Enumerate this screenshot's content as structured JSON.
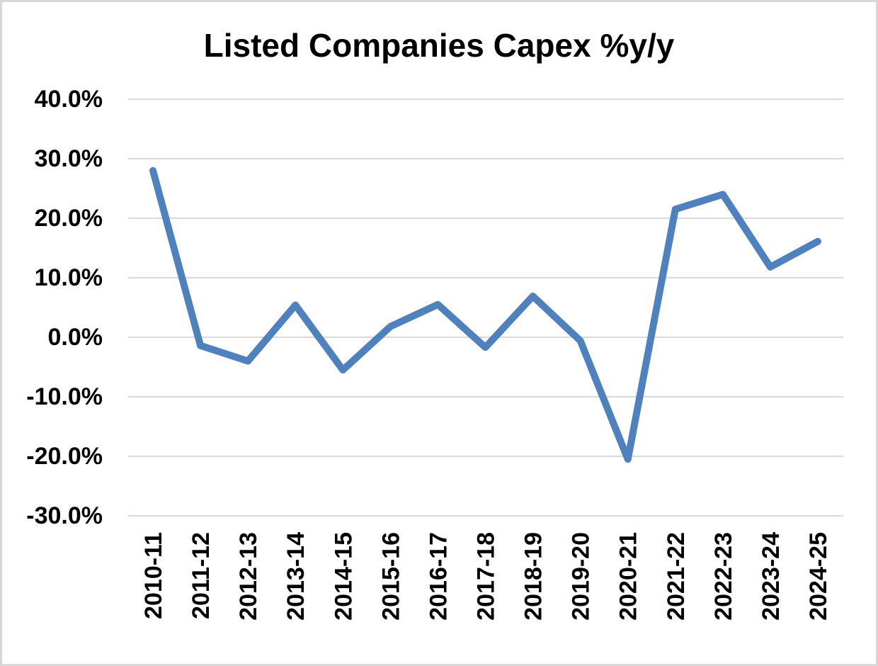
{
  "chart": {
    "title": "Listed Companies Capex %y/y"
  },
  "chart_data": {
    "type": "line",
    "title": "Listed Companies Capex %y/y",
    "categories": [
      "2010-11",
      "2011-12",
      "2012-13",
      "2013-14",
      "2014-15",
      "2015-16",
      "2016-17",
      "2017-18",
      "2018-19",
      "2019-20",
      "2020-21",
      "2021-22",
      "2022-23",
      "2023-24",
      "2024-25"
    ],
    "series": [
      {
        "name": "Capex %y/y",
        "values": [
          28.0,
          -1.4,
          -4.0,
          5.4,
          -5.5,
          1.8,
          5.5,
          -1.7,
          6.9,
          -0.6,
          -20.5,
          21.5,
          24.0,
          11.8,
          16.1
        ]
      }
    ],
    "xlabel": "",
    "ylabel": "",
    "ylim": [
      -30,
      40
    ],
    "yticks": [
      40,
      30,
      20,
      10,
      0,
      -10,
      -20,
      -30
    ],
    "ytick_labels": [
      "40.0%",
      "30.0%",
      "20.0%",
      "10.0%",
      "0.0%",
      "-10.0%",
      "-20.0%",
      "-30.0%"
    ],
    "grid": true,
    "legend_position": "none",
    "line_color": "#4F81BD",
    "gridline_color": "#D9D9D9",
    "text_color": "#000000"
  }
}
